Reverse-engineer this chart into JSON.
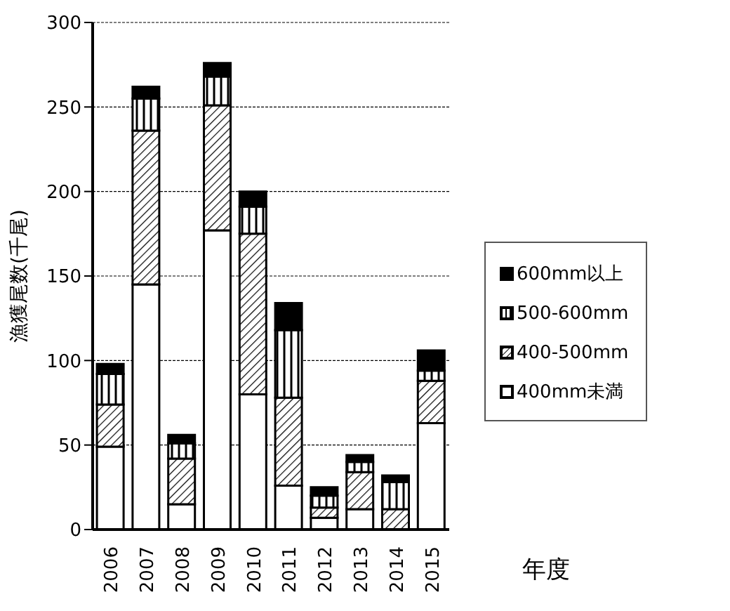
{
  "chart_data": {
    "type": "bar",
    "stacked": true,
    "xlabel": "年度",
    "ylabel": "漁獲尾数(千尾)",
    "categories": [
      "2006",
      "2007",
      "2008",
      "2009",
      "2010",
      "2011",
      "2012",
      "2013",
      "2014",
      "2015"
    ],
    "series": [
      {
        "name": "400mm未満",
        "color": "#ffffff",
        "values": [
          49,
          145,
          15,
          177,
          80,
          26,
          7,
          12,
          null,
          63
        ]
      },
      {
        "name": "400-500mm",
        "color": "#000000",
        "values": [
          25,
          91,
          27,
          74,
          95,
          52,
          6,
          22,
          12,
          25
        ]
      },
      {
        "name": "500-600mm",
        "color": "#000000",
        "values": [
          18,
          19,
          9,
          17,
          16,
          40,
          7,
          6,
          16,
          6
        ]
      },
      {
        "name": "600mm以上",
        "color": "#000000",
        "values": [
          6,
          7,
          5,
          8,
          9,
          16,
          5,
          4,
          4,
          12
        ]
      }
    ],
    "ylim": [
      0,
      300
    ],
    "yticks": [
      0,
      50,
      100,
      150,
      200,
      250,
      300
    ],
    "grid": "y",
    "legend": "right"
  }
}
